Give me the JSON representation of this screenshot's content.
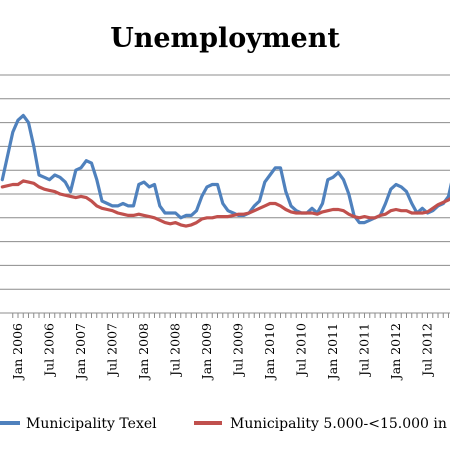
{
  "chart_data": {
    "type": "line",
    "title": "Unemployment",
    "xlabel": "",
    "ylabel": "",
    "grid": true,
    "legend_position": "bottom",
    "x_range": [
      "2005-10",
      "2013-02"
    ],
    "x_tick_labels": [
      "Jan 2006",
      "Jul 2006",
      "Jan 2007",
      "Jul 2007",
      "Jan 2008",
      "Jul 2008",
      "Jan 2009",
      "Jul 2009",
      "Jan 2010",
      "Jul 2010",
      "Jan 2011",
      "Jul 2011",
      "Jan 2012",
      "Jul 2012"
    ],
    "series": [
      {
        "name": "Municipality Texel",
        "color": "#4F81BD",
        "values": [
          [
            "2005-10",
            5.6
          ],
          [
            "2005-12",
            7.6
          ],
          [
            "2006-01",
            8.1
          ],
          [
            "2006-02",
            8.3
          ],
          [
            "2006-03",
            8.0
          ],
          [
            "2006-04",
            7.0
          ],
          [
            "2006-05",
            5.8
          ],
          [
            "2006-06",
            5.7
          ],
          [
            "2006-07",
            5.6
          ],
          [
            "2006-08",
            5.8
          ],
          [
            "2006-09",
            5.7
          ],
          [
            "2006-10",
            5.5
          ],
          [
            "2006-11",
            5.1
          ],
          [
            "2006-12",
            6.0
          ],
          [
            "2007-01",
            6.1
          ],
          [
            "2007-02",
            6.4
          ],
          [
            "2007-03",
            6.3
          ],
          [
            "2007-04",
            5.6
          ],
          [
            "2007-05",
            4.7
          ],
          [
            "2007-06",
            4.6
          ],
          [
            "2007-07",
            4.5
          ],
          [
            "2007-08",
            4.5
          ],
          [
            "2007-09",
            4.6
          ],
          [
            "2007-10",
            4.5
          ],
          [
            "2007-11",
            4.5
          ],
          [
            "2007-12",
            5.4
          ],
          [
            "2008-01",
            5.5
          ],
          [
            "2008-02",
            5.3
          ],
          [
            "2008-03",
            5.4
          ],
          [
            "2008-04",
            4.5
          ],
          [
            "2008-05",
            4.2
          ],
          [
            "2008-06",
            4.2
          ],
          [
            "2008-07",
            4.2
          ],
          [
            "2008-08",
            4.0
          ],
          [
            "2008-09",
            4.1
          ],
          [
            "2008-10",
            4.1
          ],
          [
            "2008-11",
            4.3
          ],
          [
            "2008-12",
            4.9
          ],
          [
            "2009-01",
            5.3
          ],
          [
            "2009-02",
            5.4
          ],
          [
            "2009-03",
            5.4
          ],
          [
            "2009-04",
            4.6
          ],
          [
            "2009-05",
            4.3
          ],
          [
            "2009-06",
            4.2
          ],
          [
            "2009-07",
            4.1
          ],
          [
            "2009-08",
            4.1
          ],
          [
            "2009-09",
            4.2
          ],
          [
            "2009-10",
            4.5
          ],
          [
            "2009-11",
            4.7
          ],
          [
            "2009-12",
            5.5
          ],
          [
            "2010-01",
            5.8
          ],
          [
            "2010-02",
            6.1
          ],
          [
            "2010-03",
            6.1
          ],
          [
            "2010-04",
            5.1
          ],
          [
            "2010-05",
            4.5
          ],
          [
            "2010-06",
            4.3
          ],
          [
            "2010-07",
            4.2
          ],
          [
            "2010-08",
            4.2
          ],
          [
            "2010-09",
            4.4
          ],
          [
            "2010-10",
            4.2
          ],
          [
            "2010-11",
            4.6
          ],
          [
            "2010-12",
            5.6
          ],
          [
            "2011-01",
            5.7
          ],
          [
            "2011-02",
            5.9
          ],
          [
            "2011-03",
            5.6
          ],
          [
            "2011-04",
            5.0
          ],
          [
            "2011-05",
            4.1
          ],
          [
            "2011-06",
            3.8
          ],
          [
            "2011-07",
            3.8
          ],
          [
            "2011-08",
            3.9
          ],
          [
            "2011-09",
            4.0
          ],
          [
            "2011-10",
            4.1
          ],
          [
            "2011-11",
            4.6
          ],
          [
            "2011-12",
            5.2
          ],
          [
            "2012-01",
            5.4
          ],
          [
            "2012-02",
            5.3
          ],
          [
            "2012-03",
            5.1
          ],
          [
            "2012-04",
            4.6
          ],
          [
            "2012-05",
            4.2
          ],
          [
            "2012-06",
            4.4
          ],
          [
            "2012-07",
            4.2
          ],
          [
            "2012-08",
            4.3
          ],
          [
            "2012-09",
            4.5
          ],
          [
            "2012-10",
            4.6
          ],
          [
            "2012-11",
            4.9
          ],
          [
            "2012-12",
            5.9
          ],
          [
            "2013-01",
            6.1
          ]
        ]
      },
      {
        "name": "Municipality 5.000-<15.000 in",
        "color": "#C0504D",
        "values": [
          [
            "2005-10",
            5.3
          ],
          [
            "2005-12",
            5.4
          ],
          [
            "2006-01",
            5.4
          ],
          [
            "2006-02",
            5.55
          ],
          [
            "2006-03",
            5.5
          ],
          [
            "2006-04",
            5.45
          ],
          [
            "2006-05",
            5.3
          ],
          [
            "2006-06",
            5.2
          ],
          [
            "2006-07",
            5.15
          ],
          [
            "2006-08",
            5.1
          ],
          [
            "2006-09",
            5.0
          ],
          [
            "2006-10",
            4.95
          ],
          [
            "2006-11",
            4.9
          ],
          [
            "2006-12",
            4.85
          ],
          [
            "2007-01",
            4.9
          ],
          [
            "2007-02",
            4.85
          ],
          [
            "2007-03",
            4.7
          ],
          [
            "2007-04",
            4.5
          ],
          [
            "2007-05",
            4.4
          ],
          [
            "2007-06",
            4.35
          ],
          [
            "2007-07",
            4.3
          ],
          [
            "2007-08",
            4.2
          ],
          [
            "2007-09",
            4.15
          ],
          [
            "2007-10",
            4.1
          ],
          [
            "2007-11",
            4.1
          ],
          [
            "2007-12",
            4.15
          ],
          [
            "2008-01",
            4.1
          ],
          [
            "2008-02",
            4.05
          ],
          [
            "2008-03",
            4.0
          ],
          [
            "2008-04",
            3.9
          ],
          [
            "2008-05",
            3.8
          ],
          [
            "2008-06",
            3.75
          ],
          [
            "2008-07",
            3.8
          ],
          [
            "2008-08",
            3.7
          ],
          [
            "2008-09",
            3.65
          ],
          [
            "2008-10",
            3.7
          ],
          [
            "2008-11",
            3.8
          ],
          [
            "2008-12",
            3.95
          ],
          [
            "2009-01",
            4.0
          ],
          [
            "2009-02",
            4.0
          ],
          [
            "2009-03",
            4.05
          ],
          [
            "2009-04",
            4.05
          ],
          [
            "2009-05",
            4.05
          ],
          [
            "2009-06",
            4.1
          ],
          [
            "2009-07",
            4.15
          ],
          [
            "2009-08",
            4.15
          ],
          [
            "2009-09",
            4.2
          ],
          [
            "2009-10",
            4.3
          ],
          [
            "2009-11",
            4.4
          ],
          [
            "2009-12",
            4.5
          ],
          [
            "2010-01",
            4.6
          ],
          [
            "2010-02",
            4.6
          ],
          [
            "2010-03",
            4.5
          ],
          [
            "2010-04",
            4.35
          ],
          [
            "2010-05",
            4.25
          ],
          [
            "2010-06",
            4.2
          ],
          [
            "2010-07",
            4.2
          ],
          [
            "2010-08",
            4.2
          ],
          [
            "2010-09",
            4.2
          ],
          [
            "2010-10",
            4.15
          ],
          [
            "2010-11",
            4.25
          ],
          [
            "2010-12",
            4.3
          ],
          [
            "2011-01",
            4.35
          ],
          [
            "2011-02",
            4.35
          ],
          [
            "2011-03",
            4.3
          ],
          [
            "2011-04",
            4.15
          ],
          [
            "2011-05",
            4.05
          ],
          [
            "2011-06",
            4.0
          ],
          [
            "2011-07",
            4.05
          ],
          [
            "2011-08",
            4.0
          ],
          [
            "2011-09",
            4.0
          ],
          [
            "2011-10",
            4.1
          ],
          [
            "2011-11",
            4.15
          ],
          [
            "2011-12",
            4.3
          ],
          [
            "2012-01",
            4.35
          ],
          [
            "2012-02",
            4.3
          ],
          [
            "2012-03",
            4.3
          ],
          [
            "2012-04",
            4.2
          ],
          [
            "2012-05",
            4.2
          ],
          [
            "2012-06",
            4.2
          ],
          [
            "2012-07",
            4.25
          ],
          [
            "2012-08",
            4.4
          ],
          [
            "2012-09",
            4.55
          ],
          [
            "2012-10",
            4.65
          ],
          [
            "2012-11",
            4.75
          ],
          [
            "2012-12",
            4.9
          ],
          [
            "2013-01",
            5.0
          ]
        ]
      }
    ]
  }
}
